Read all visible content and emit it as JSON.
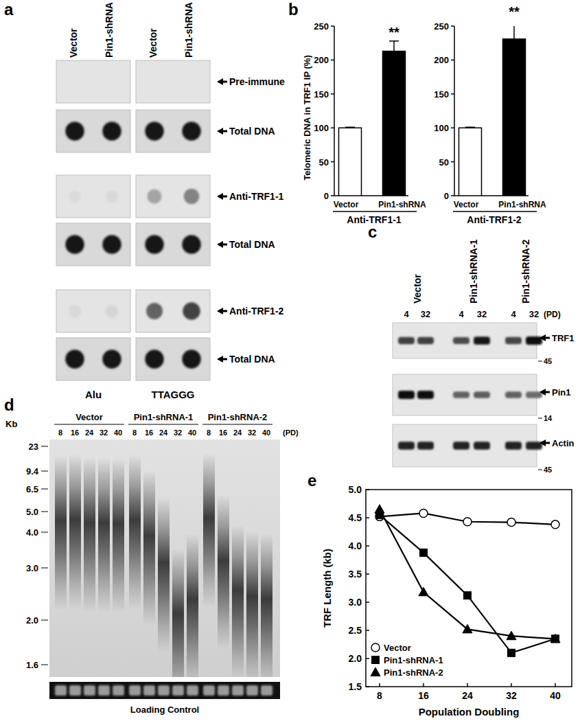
{
  "figure_labels": [
    "a",
    "b",
    "c",
    "d",
    "e"
  ],
  "panel_a": {
    "columns": [
      "Vector",
      "Pin1-shRNA"
    ],
    "probes": [
      "Alu",
      "TTAGGG"
    ],
    "rows": [
      "Pre-immune",
      "Total DNA",
      "Anti-TRF1-1",
      "Total DNA",
      "Anti-TRF1-2",
      "Total DNA"
    ]
  },
  "chart_data": [
    {
      "type": "bar",
      "y_label": "Telomeric DNA in TRF1 IP (%)",
      "x_label": "Anti-TRF1-1",
      "categories": [
        "Vector",
        "Pin1-shRNA"
      ],
      "values": [
        100,
        213
      ],
      "errors": [
        1,
        15
      ],
      "colors": [
        "#ffffff",
        "#000000"
      ],
      "ylim": [
        0,
        250
      ],
      "yticks": [
        0,
        50,
        100,
        150,
        200,
        250
      ],
      "annotations": [
        {
          "text": "**",
          "x": "Pin1-shRNA"
        }
      ]
    },
    {
      "type": "bar",
      "x_label": "Anti-TRF1-2",
      "categories": [
        "Vector",
        "Pin1-shRNA"
      ],
      "values": [
        100,
        231
      ],
      "errors": [
        1,
        27
      ],
      "colors": [
        "#ffffff",
        "#000000"
      ],
      "ylim": [
        0,
        250
      ],
      "yticks": [
        0,
        50,
        100,
        150,
        200,
        250
      ],
      "annotations": [
        {
          "text": "**",
          "x": "Pin1-shRNA"
        }
      ]
    },
    {
      "type": "line",
      "x_label": "Population Doubling",
      "y_label": "TRF Length (kb)",
      "x": [
        8,
        16,
        24,
        32,
        40
      ],
      "xlim": [
        5.5,
        43
      ],
      "xticks": [
        8,
        16,
        24,
        32,
        40
      ],
      "ylim": [
        1.5,
        5
      ],
      "yticks": [
        1.5,
        {
          "value": 2,
          "label": "2.0"
        },
        2.5,
        {
          "value": 3,
          "label": "3.0"
        },
        3.5,
        {
          "value": 4,
          "label": "4.0"
        },
        4.5,
        {
          "value": 5,
          "label": "5.0"
        }
      ],
      "legend": "lower left",
      "series": [
        {
          "name": "Vector",
          "color": "#000000",
          "marker": "circle-open",
          "values": [
            4.52,
            4.58,
            4.43,
            4.42,
            4.38
          ]
        },
        {
          "name": "Pin1-shRNA-1",
          "color": "#000000",
          "marker": "square",
          "values": [
            4.55,
            3.88,
            3.12,
            2.1,
            2.35
          ]
        },
        {
          "name": "Pin1-shRNA-2",
          "color": "#000000",
          "marker": "triangle",
          "values": [
            4.65,
            3.18,
            2.52,
            2.4,
            2.35
          ]
        }
      ]
    }
  ],
  "panel_c": {
    "groups": [
      {
        "name": "Vector",
        "pd": [
          4,
          32
        ]
      },
      {
        "name": "Pin1-shRNA-1",
        "pd": [
          4,
          32
        ]
      },
      {
        "name": "Pin1-shRNA-2",
        "pd": [
          4,
          32
        ]
      }
    ],
    "pd_label": "(PD)",
    "blots": [
      {
        "label": "TRF1",
        "size": 45
      },
      {
        "label": "Pin1",
        "size": 14
      },
      {
        "label": "Actin",
        "size": 45
      }
    ]
  },
  "panel_d": {
    "y_label": "Kb",
    "ladder": [
      23,
      9.4,
      6.5,
      {
        "value": 5,
        "label": "5.0"
      },
      {
        "value": 4,
        "label": "4.0"
      },
      {
        "value": 3,
        "label": "3.0"
      },
      {
        "value": 2,
        "label": "2.0"
      },
      1.6
    ],
    "groups": [
      {
        "name": "Vector",
        "pd": [
          8,
          16,
          24,
          32,
          40
        ]
      },
      {
        "name": "Pin1-shRNA-1",
        "pd": [
          8,
          16,
          24,
          32,
          40
        ]
      },
      {
        "name": "Pin1-shRNA-2",
        "pd": [
          8,
          16,
          24,
          32,
          40
        ]
      }
    ],
    "pd_label": "(PD)",
    "loading_label": "Loading Control"
  }
}
